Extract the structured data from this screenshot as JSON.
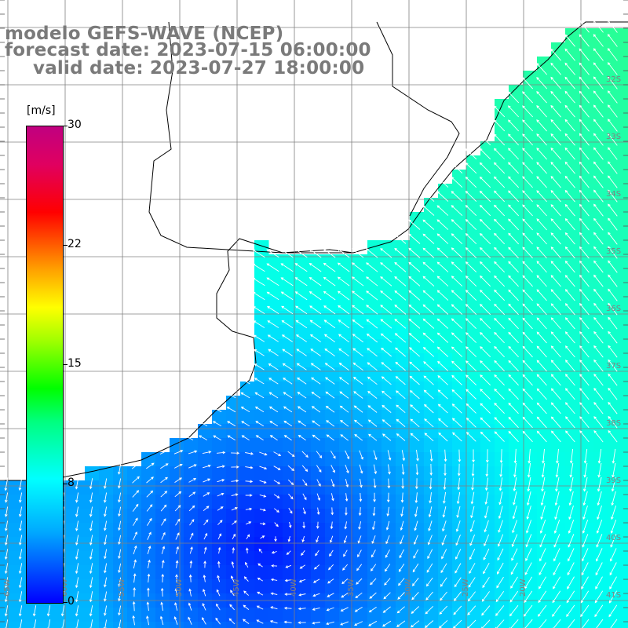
{
  "titles": {
    "line1": "modelo GEFS-WAVE (NCEP)",
    "line2": "forecast date: 2023-07-15 06:00:00",
    "line3": "valid date: 2023-07-27 18:00:00"
  },
  "colorbar": {
    "unit": "[m/s]",
    "ticks": [
      "30",
      "22",
      "15",
      "8",
      "0"
    ],
    "tick_values": [
      30,
      22,
      15,
      8,
      0
    ],
    "range": [
      0,
      30
    ]
  },
  "map": {
    "lon_labels": [
      "65W",
      "60W",
      "55W",
      "50W",
      "45W",
      "40W",
      "35W",
      "30W",
      "25W",
      "20W"
    ],
    "lat_labels": [
      "32S",
      "33S",
      "34S",
      "35S",
      "36S",
      "37S",
      "38S",
      "39S",
      "40S",
      "41S"
    ],
    "grid_color": "#808080",
    "coast_color": "#000000",
    "arrow_color": "#ffffff"
  },
  "chart_data": {
    "type": "heatmap",
    "variable": "wind speed",
    "unit": "[m/s]",
    "colorscale_range": [
      0,
      30
    ],
    "observed_range": [
      0,
      8
    ],
    "min_region": "southwest interior of the ocean domain",
    "max_region": "northeast ocean near coast"
  }
}
